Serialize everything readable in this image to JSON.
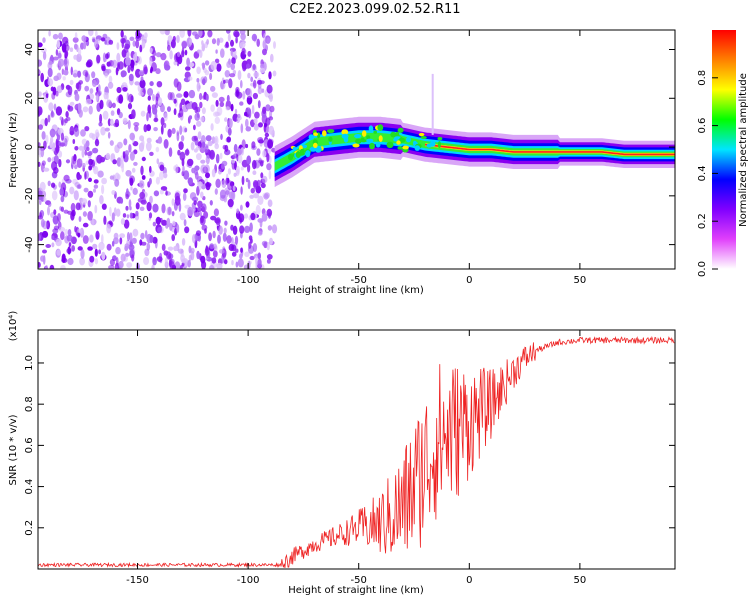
{
  "title": "C2E2.2023.099.02.52.R11",
  "chart_data": [
    {
      "type": "heatmap",
      "xlabel": "Height of straight line (km)",
      "ylabel": "Frequency (Hz)",
      "xlim": [
        -195,
        93
      ],
      "ylim": [
        -50,
        48
      ],
      "xticks": [
        -150,
        -100,
        -50,
        0,
        50
      ],
      "yticks": [
        -40,
        -20,
        0,
        20,
        40
      ],
      "xticklabels": [
        "-150",
        "-100",
        "-50",
        "0",
        "50"
      ],
      "yticklabels": [
        "-40",
        "-20",
        "0",
        "20",
        "40"
      ],
      "colorbar": {
        "label": "Normalized spectral amplitude",
        "range": [
          0,
          1
        ],
        "ticks": [
          0.0,
          0.2,
          0.4,
          0.6,
          0.8
        ],
        "ticklabels": [
          "0.0",
          "0.2",
          "0.4",
          "0.6",
          "0.8"
        ],
        "colors": [
          "#ffffff",
          "#e040fb",
          "#8000ff",
          "#0000ff",
          "#00e5ff",
          "#00ff00",
          "#ffff00",
          "#ff8000",
          "#ff0000"
        ]
      },
      "signal_ridge": {
        "x": [
          -88,
          -80,
          -70,
          -60,
          -50,
          -40,
          -30,
          -20,
          -10,
          0,
          10,
          20,
          30,
          40,
          50,
          60,
          70,
          80,
          93
        ],
        "y": [
          -8,
          -4,
          2,
          3,
          4,
          4,
          3,
          1,
          0,
          -1,
          -1,
          -2,
          -2,
          -2,
          -2,
          -2,
          -3,
          -3,
          -3
        ]
      },
      "noise_region_x": [
        -195,
        -88
      ]
    },
    {
      "type": "line",
      "xlabel": "Height of straight line (km)",
      "ylabel": "SNR (10 * v/v)",
      "yscale_label": "(x10⁴)",
      "xlim": [
        -195,
        93
      ],
      "ylim": [
        0,
        1.16
      ],
      "xticks": [
        -150,
        -100,
        -50,
        0,
        50
      ],
      "yticks": [
        0.2,
        0.4,
        0.6,
        0.8,
        1.0
      ],
      "xticklabels": [
        "-150",
        "-100",
        "-50",
        "0",
        "50"
      ],
      "yticklabels": [
        "0.2",
        "0.4",
        "0.6",
        "0.8",
        "1.0"
      ],
      "series": [
        {
          "color": "#ee2222",
          "x": [
            -195,
            -150,
            -100,
            -85,
            -80,
            -70,
            -60,
            -50,
            -40,
            -30,
            -20,
            -15,
            -10,
            -5,
            0,
            5,
            10,
            15,
            20,
            25,
            30,
            35,
            40,
            50,
            60,
            70,
            80,
            93
          ],
          "y": [
            0.02,
            0.02,
            0.02,
            0.02,
            0.06,
            0.12,
            0.16,
            0.2,
            0.22,
            0.3,
            0.5,
            0.62,
            0.65,
            0.68,
            0.72,
            0.76,
            0.8,
            0.88,
            0.96,
            1.02,
            1.06,
            1.08,
            1.1,
            1.11,
            1.11,
            1.11,
            1.11,
            1.11
          ]
        }
      ]
    }
  ]
}
